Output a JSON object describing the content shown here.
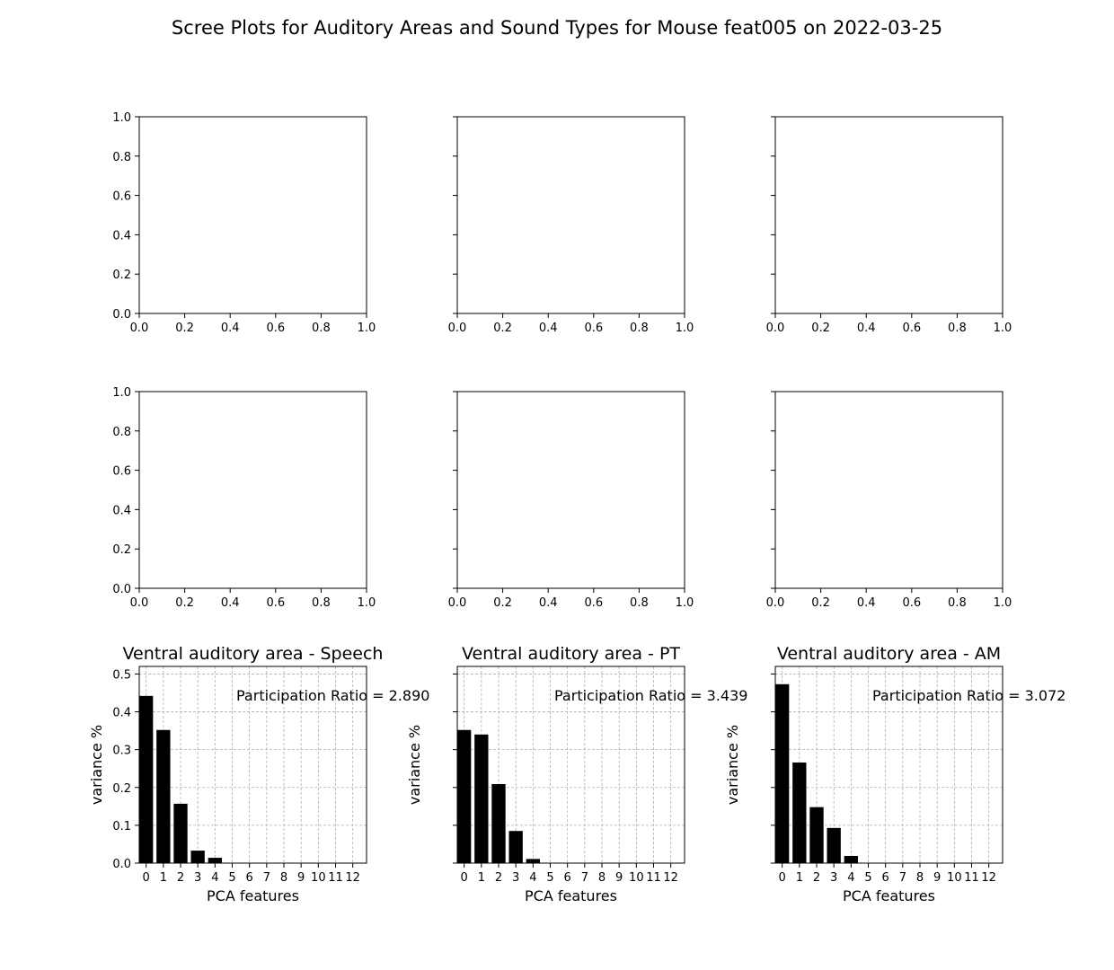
{
  "figure": {
    "title": "Scree Plots for Auditory Areas and Sound Types for Mouse feat005 on 2022-03-25"
  },
  "chart_data": [
    {
      "type": "bar",
      "panel": "row1-col1",
      "title": "",
      "xlabel": "",
      "ylabel": "",
      "xlim": [
        0,
        1
      ],
      "ylim": [
        0,
        1
      ],
      "x_ticks": [
        "0.0",
        "0.2",
        "0.4",
        "0.6",
        "0.8",
        "1.0"
      ],
      "y_ticks": [
        "0.0",
        "0.2",
        "0.4",
        "0.6",
        "0.8",
        "1.0"
      ],
      "show_y_tick_labels": true,
      "values": [],
      "annotation": "",
      "grid": false
    },
    {
      "type": "bar",
      "panel": "row1-col2",
      "title": "",
      "xlabel": "",
      "ylabel": "",
      "xlim": [
        0,
        1
      ],
      "ylim": [
        0,
        1
      ],
      "x_ticks": [
        "0.0",
        "0.2",
        "0.4",
        "0.6",
        "0.8",
        "1.0"
      ],
      "y_ticks": [],
      "show_y_tick_labels": false,
      "values": [],
      "annotation": "",
      "grid": false
    },
    {
      "type": "bar",
      "panel": "row1-col3",
      "title": "",
      "xlabel": "",
      "ylabel": "",
      "xlim": [
        0,
        1
      ],
      "ylim": [
        0,
        1
      ],
      "x_ticks": [
        "0.0",
        "0.2",
        "0.4",
        "0.6",
        "0.8",
        "1.0"
      ],
      "y_ticks": [],
      "show_y_tick_labels": false,
      "values": [],
      "annotation": "",
      "grid": false
    },
    {
      "type": "bar",
      "panel": "row2-col1",
      "title": "",
      "xlabel": "",
      "ylabel": "",
      "xlim": [
        0,
        1
      ],
      "ylim": [
        0,
        1
      ],
      "x_ticks": [
        "0.0",
        "0.2",
        "0.4",
        "0.6",
        "0.8",
        "1.0"
      ],
      "y_ticks": [
        "0.0",
        "0.2",
        "0.4",
        "0.6",
        "0.8",
        "1.0"
      ],
      "show_y_tick_labels": true,
      "values": [],
      "annotation": "",
      "grid": false
    },
    {
      "type": "bar",
      "panel": "row2-col2",
      "title": "",
      "xlabel": "",
      "ylabel": "",
      "xlim": [
        0,
        1
      ],
      "ylim": [
        0,
        1
      ],
      "x_ticks": [
        "0.0",
        "0.2",
        "0.4",
        "0.6",
        "0.8",
        "1.0"
      ],
      "y_ticks": [],
      "show_y_tick_labels": false,
      "values": [],
      "annotation": "",
      "grid": false
    },
    {
      "type": "bar",
      "panel": "row2-col3",
      "title": "",
      "xlabel": "",
      "ylabel": "",
      "xlim": [
        0,
        1
      ],
      "ylim": [
        0,
        1
      ],
      "x_ticks": [
        "0.0",
        "0.2",
        "0.4",
        "0.6",
        "0.8",
        "1.0"
      ],
      "y_ticks": [],
      "show_y_tick_labels": false,
      "values": [],
      "annotation": "",
      "grid": false
    },
    {
      "type": "bar",
      "panel": "row3-col1",
      "title": "Ventral auditory area - Speech",
      "xlabel": "PCA features",
      "ylabel": "variance %",
      "xlim": [
        -0.4,
        12.8
      ],
      "ylim": [
        0,
        0.52
      ],
      "x_ticks": [
        "0",
        "1",
        "2",
        "3",
        "4",
        "5",
        "6",
        "7",
        "8",
        "9",
        "10",
        "11",
        "12"
      ],
      "y_ticks": [
        "0.0",
        "0.1",
        "0.2",
        "0.3",
        "0.4",
        "0.5"
      ],
      "show_y_tick_labels": true,
      "categories": [
        0,
        1,
        2,
        3,
        4,
        5,
        6,
        7,
        8,
        9,
        10,
        11,
        12
      ],
      "values": [
        0.442,
        0.352,
        0.157,
        0.033,
        0.014,
        0,
        0,
        0,
        0,
        0,
        0,
        0,
        0
      ],
      "annotation": "Participation Ratio = 2.890",
      "grid": true,
      "bar_color": "#000000"
    },
    {
      "type": "bar",
      "panel": "row3-col2",
      "title": "Ventral auditory area - PT",
      "xlabel": "PCA features",
      "ylabel": "variance %",
      "xlim": [
        -0.4,
        12.8
      ],
      "ylim": [
        0,
        0.52
      ],
      "x_ticks": [
        "0",
        "1",
        "2",
        "3",
        "4",
        "5",
        "6",
        "7",
        "8",
        "9",
        "10",
        "11",
        "12"
      ],
      "y_ticks": [],
      "show_y_tick_labels": false,
      "categories": [
        0,
        1,
        2,
        3,
        4,
        5,
        6,
        7,
        8,
        9,
        10,
        11,
        12
      ],
      "values": [
        0.352,
        0.34,
        0.209,
        0.085,
        0.011,
        0,
        0,
        0,
        0,
        0,
        0,
        0,
        0
      ],
      "annotation": "Participation Ratio = 3.439",
      "grid": true,
      "bar_color": "#000000"
    },
    {
      "type": "bar",
      "panel": "row3-col3",
      "title": "Ventral auditory area - AM",
      "xlabel": "PCA features",
      "ylabel": "variance %",
      "xlim": [
        -0.4,
        12.8
      ],
      "ylim": [
        0,
        0.52
      ],
      "x_ticks": [
        "0",
        "1",
        "2",
        "3",
        "4",
        "5",
        "6",
        "7",
        "8",
        "9",
        "10",
        "11",
        "12"
      ],
      "y_ticks": [],
      "show_y_tick_labels": false,
      "categories": [
        0,
        1,
        2,
        3,
        4,
        5,
        6,
        7,
        8,
        9,
        10,
        11,
        12
      ],
      "values": [
        0.473,
        0.266,
        0.148,
        0.093,
        0.019,
        0,
        0,
        0,
        0,
        0,
        0,
        0,
        0
      ],
      "annotation": "Participation Ratio = 3.072",
      "grid": true,
      "bar_color": "#000000"
    }
  ]
}
